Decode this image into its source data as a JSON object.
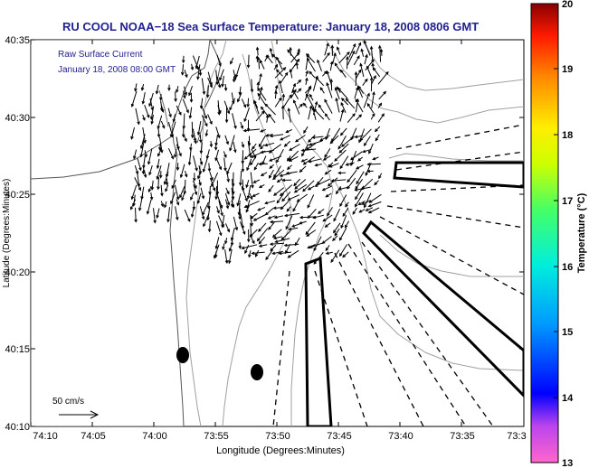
{
  "figure": {
    "title": "RU COOL  NOAA−18  Sea Surface Temperature:  January 18, 2008 0806 GMT",
    "annotation_line1": "Raw Surface Current",
    "annotation_line2": "January 18, 2008 08:00 GMT",
    "scale_label": "50 cm/s",
    "xlabel": "Longitude (Degrees:Minutes)",
    "ylabel": "Latitude (Degrees:Minutes)",
    "x_ticks": [
      "74:10",
      "74:05",
      "74:00",
      "73:55",
      "73:50",
      "73:45",
      "73:40",
      "73:35",
      "73:3"
    ],
    "y_ticks": [
      "40:35",
      "40:30",
      "40:25",
      "40:20",
      "40:15",
      "40:10"
    ],
    "colorbar_label": "Temperature (°C)",
    "colorbar_ticks": [
      "20",
      "19",
      "18",
      "17",
      "16",
      "15",
      "14",
      "13"
    ]
  },
  "chart_data": {
    "type": "map",
    "title": "RU COOL  NOAA−18  Sea Surface Temperature:  January 18, 2008 0806 GMT",
    "subtitle": "Raw Surface Current — January 18, 2008 08:00 GMT",
    "xlabel": "Longitude (Degrees:Minutes)",
    "ylabel": "Latitude (Degrees:Minutes)",
    "xlim_deg_west": [
      74.1667,
      73.5
    ],
    "ylim_deg_north": [
      40.1667,
      40.5833
    ],
    "colorbar": {
      "label": "Temperature (°C)",
      "min": 13,
      "max": 20
    },
    "reference_vector": "50 cm/s",
    "markers": [
      {
        "name": "marker-a",
        "lon": "73:59",
        "lat": "40:14.7"
      },
      {
        "name": "marker-b",
        "lon": "73:52.5",
        "lat": "40:13.5"
      }
    ]
  },
  "colors": {
    "title": "#1f1f8f",
    "annotation": "#1f1f8f",
    "contour": "#a0a0a0",
    "coast": "#444444",
    "vectors": "#000000"
  }
}
